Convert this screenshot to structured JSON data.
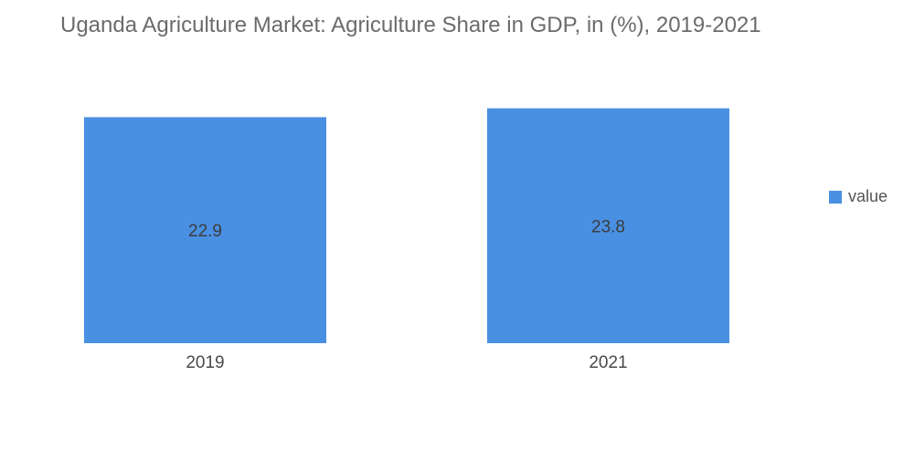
{
  "chart_data": {
    "type": "bar",
    "title": "Uganda Agriculture Market: Agriculture Share in GDP, in (%), 2019-2021",
    "categories": [
      "2019",
      "2021"
    ],
    "series": [
      {
        "name": "value",
        "values": [
          22.9,
          23.8
        ],
        "color": "#4a90e2"
      }
    ],
    "data_labels": [
      "22.9",
      "23.8"
    ],
    "xlabel": "",
    "ylabel": "",
    "ylim": [
      0,
      24.6
    ],
    "grid": false,
    "legend_position": "right"
  }
}
